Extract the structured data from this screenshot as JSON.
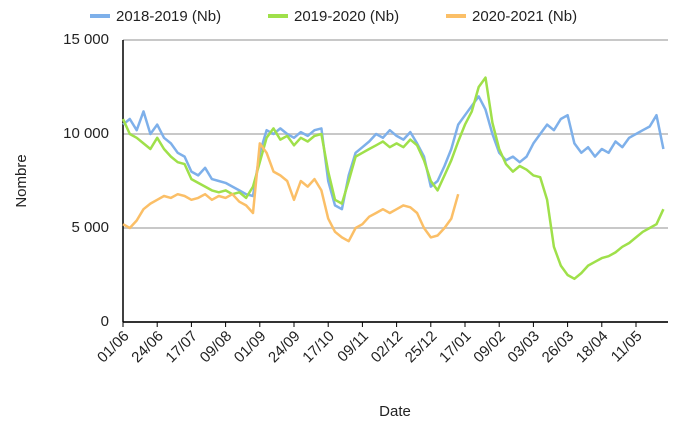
{
  "chart_data": {
    "type": "line",
    "x_label": "Date",
    "y_label": "Nombre",
    "categories": [
      "01/06",
      null,
      null,
      null,
      null,
      "24/06",
      null,
      null,
      null,
      null,
      "17/07",
      null,
      null,
      null,
      null,
      "09/08",
      null,
      null,
      null,
      null,
      "01/09",
      null,
      null,
      null,
      null,
      "24/09",
      null,
      null,
      null,
      null,
      "17/10",
      null,
      null,
      null,
      null,
      "09/11",
      null,
      null,
      null,
      null,
      "02/12",
      null,
      null,
      null,
      null,
      "25/12",
      null,
      null,
      null,
      null,
      "17/01",
      null,
      null,
      null,
      null,
      "09/02",
      null,
      null,
      null,
      null,
      "03/03",
      null,
      null,
      null,
      null,
      "26/03",
      null,
      null,
      null,
      null,
      "18/04",
      null,
      null,
      null,
      null,
      "11/05",
      null,
      null,
      null,
      null
    ],
    "series": [
      {
        "name": "2018-2019 (Nb)",
        "color": "#7eb0ea",
        "values": [
          10500,
          10800,
          10200,
          11200,
          10000,
          10500,
          9800,
          9500,
          9000,
          8800,
          8000,
          7800,
          8200,
          7600,
          7500,
          7400,
          7200,
          7000,
          6800,
          6700,
          9000,
          10200,
          10000,
          10300,
          10000,
          9800,
          10100,
          9900,
          10200,
          10300,
          7500,
          6200,
          6000,
          7800,
          9000,
          9300,
          9600,
          10000,
          9800,
          10200,
          9900,
          9700,
          10100,
          9500,
          8800,
          7200,
          7500,
          8300,
          9200,
          10500,
          11000,
          11500,
          12000,
          11300,
          10000,
          9000,
          8600,
          8800,
          8500,
          8800,
          9500,
          10000,
          10500,
          10200,
          10800,
          11000,
          9500,
          9000,
          9300,
          8800,
          9200,
          9000,
          9600,
          9300,
          9800,
          10000,
          10200,
          10400,
          11000,
          9200
        ]
      },
      {
        "name": "2019-2020 (Nb)",
        "color": "#9fe04a",
        "values": [
          10800,
          10000,
          9800,
          9500,
          9200,
          9800,
          9200,
          8800,
          8500,
          8400,
          7600,
          7400,
          7200,
          7000,
          6900,
          7000,
          6800,
          6900,
          6600,
          7200,
          8500,
          9800,
          10300,
          9700,
          9900,
          9400,
          9800,
          9600,
          9900,
          10000,
          8000,
          6500,
          6300,
          7500,
          8800,
          9000,
          9200,
          9400,
          9600,
          9300,
          9500,
          9300,
          9700,
          9400,
          8600,
          7500,
          7000,
          7800,
          8600,
          9600,
          10500,
          11200,
          12500,
          13000,
          10600,
          9200,
          8400,
          8000,
          8300,
          8100,
          7800,
          7700,
          6500,
          4000,
          3000,
          2500,
          2300,
          2600,
          3000,
          3200,
          3400,
          3500,
          3700,
          4000,
          4200,
          4500,
          4800,
          5000,
          5200,
          6000
        ]
      },
      {
        "name": "2020-2021 (Nb)",
        "color": "#fbbf67",
        "values": [
          5200,
          5000,
          5400,
          6000,
          6300,
          6500,
          6700,
          6600,
          6800,
          6700,
          6500,
          6600,
          6800,
          6500,
          6700,
          6600,
          6800,
          6400,
          6200,
          5800,
          9500,
          9000,
          8000,
          7800,
          7500,
          6500,
          7500,
          7200,
          7600,
          7000,
          5500,
          4800,
          4500,
          4300,
          5000,
          5200,
          5600,
          5800,
          6000,
          5800,
          6000,
          6200,
          6100,
          5800,
          5000,
          4500,
          4600,
          5000,
          5500,
          6800,
          null,
          null,
          null,
          null,
          null,
          null,
          null,
          null,
          null,
          null,
          null,
          null,
          null,
          null,
          null,
          null,
          null,
          null,
          null,
          null,
          null,
          null,
          null,
          null,
          null,
          null,
          null,
          null,
          null,
          null
        ]
      }
    ],
    "ylim": [
      0,
      15000
    ],
    "yticks": [
      0,
      {
        "value": 5000,
        "label": "5 000"
      },
      {
        "value": 10000,
        "label": "10 000"
      },
      {
        "value": 15000,
        "label": "15 000"
      }
    ],
    "grid": true,
    "legend": "top"
  }
}
